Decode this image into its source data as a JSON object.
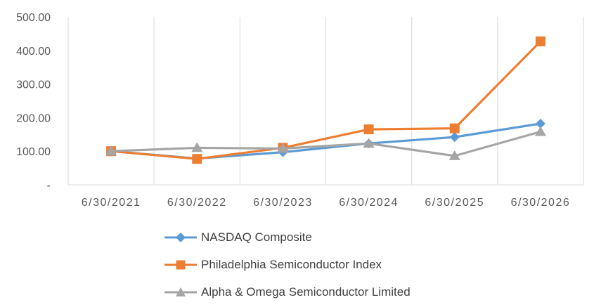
{
  "chart_data": {
    "type": "line",
    "categories": [
      "6/30/2021",
      "6/30/2022",
      "6/30/2023",
      "6/30/2024",
      "6/30/2025",
      "6/30/2026"
    ],
    "y_ticks": [
      "-",
      "100.00",
      "200.00",
      "300.00",
      "400.00",
      "500.00"
    ],
    "ylim": [
      0,
      500
    ],
    "grid": "vertical",
    "legend": "bottom",
    "series": [
      {
        "name": "NASDAQ Composite",
        "color": "#5B9BD5",
        "marker": "diamond",
        "values": [
          100,
          78,
          97,
          123,
          142,
          182
        ]
      },
      {
        "name": "Philadelphia Semiconductor Index",
        "color": "#ED7D31",
        "marker": "square",
        "values": [
          100,
          77,
          110,
          165,
          168,
          427
        ]
      },
      {
        "name": "Alpha & Omega Semiconductor Limited",
        "color": "#A5A5A5",
        "marker": "triangle",
        "values": [
          100,
          110,
          108,
          123,
          86,
          158
        ]
      }
    ]
  }
}
